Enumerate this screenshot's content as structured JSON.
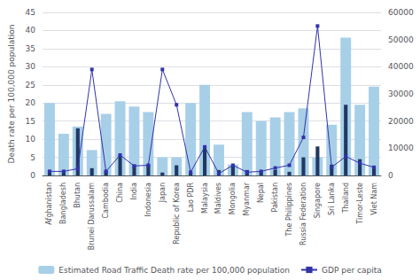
{
  "chart_data": {
    "type": "bar",
    "categories": [
      "Afghanistan",
      "Bangladesh",
      "Bhutan",
      "Brunei Darussalam",
      "Cambodia",
      "China",
      "India",
      "Indonesia",
      "Japan",
      "Republic of Korea",
      "Lao PDR",
      "Malaysia",
      "Maldives",
      "Mongolia",
      "Myanmar",
      "Nepal",
      "Pakistan",
      "The Philippines",
      "Russia Federation",
      "Singapore",
      "Sri Lanka",
      "Thailand",
      "Timor-Leste",
      "Viet Nam"
    ],
    "series": [
      {
        "name": "Estimated Road Traffic Death rate per 100,000 population",
        "type": "bar",
        "color": "#a8cfe8",
        "values": [
          20,
          11.5,
          13.5,
          7,
          17,
          20.5,
          19,
          17.5,
          5,
          5,
          20,
          25,
          8.5,
          3,
          17.5,
          15,
          16,
          17.5,
          18.5,
          5,
          14,
          38,
          19.5,
          24.5
        ]
      },
      {
        "type": "bar",
        "color": "#1f3864",
        "values": [
          1.5,
          1.0,
          13.0,
          2.0,
          1.2,
          5.5,
          2.8,
          3.0,
          0.8,
          2.8,
          0.8,
          8.0,
          1.5,
          3.0,
          1.5,
          1.2,
          1.5,
          1.0,
          5.0,
          8.0,
          3.0,
          19.5,
          4.5,
          2.5
        ]
      },
      {
        "name": "GDP per capita",
        "type": "line",
        "axis": "y2",
        "color": "#3333aa",
        "marker": "square",
        "values": [
          1500,
          1500,
          2500,
          39000,
          1500,
          7500,
          3500,
          3750,
          39000,
          26000,
          1200,
          10500,
          700,
          3750,
          1200,
          1500,
          2750,
          3750,
          14000,
          55000,
          3000,
          7000,
          4500,
          3000
        ]
      }
    ],
    "ylabel": "Death rate per 100,000 population",
    "ylim": [
      0,
      45
    ],
    "yticks": [
      0,
      5,
      10,
      15,
      20,
      25,
      30,
      35,
      40,
      45
    ],
    "y2lim": [
      0,
      60000
    ],
    "y2ticks": [
      0,
      10000,
      20000,
      30000,
      40000,
      50000,
      60000
    ],
    "grid": true,
    "legend": "bottom"
  }
}
